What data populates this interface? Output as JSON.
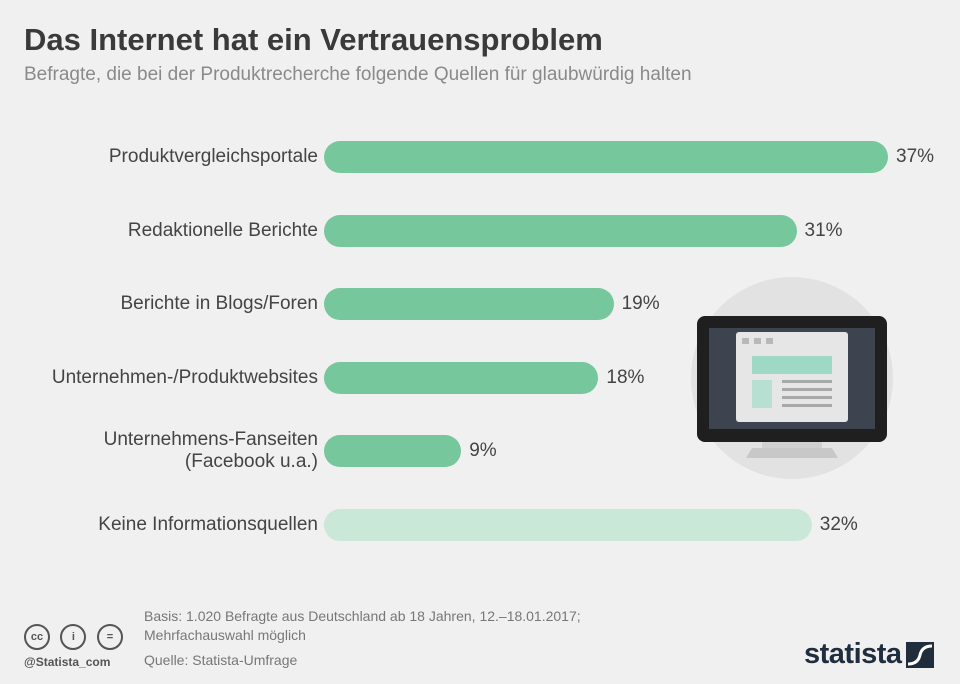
{
  "header": {
    "title": "Das Internet hat ein Vertrauensproblem",
    "subtitle": "Befragte, die bei der Produktrecherche folgende Quellen für glaubwürdig halten"
  },
  "chart_data": {
    "type": "bar",
    "orientation": "horizontal",
    "categories": [
      [
        "Produktvergleichsportale"
      ],
      [
        "Redaktionelle Berichte"
      ],
      [
        "Berichte in Blogs/Foren"
      ],
      [
        "Unternehmen-/Produktwebsites"
      ],
      [
        "Unternehmens-Fanseiten",
        "(Facebook u.a.)"
      ],
      [
        "Keine Informationsquellen"
      ]
    ],
    "values": [
      37,
      31,
      19,
      18,
      9,
      32
    ],
    "value_labels": [
      "37%",
      "31%",
      "19%",
      "18%",
      "9%",
      "32%"
    ],
    "unit": "%",
    "colors": [
      "#76c79b",
      "#76c79b",
      "#76c79b",
      "#76c79b",
      "#76c79b",
      "#c9e8d7"
    ],
    "xlim": [
      0,
      37
    ],
    "grid": false,
    "legend": "none"
  },
  "colors": {
    "bar_primary": "#76c79b",
    "bar_light": "#c9e8d7",
    "background": "#f0f0f0"
  },
  "illustration": {
    "icon": "monitor-webpage-icon"
  },
  "footer": {
    "basis_line1": "Basis: 1.020 Befragte aus Deutschland ab 18 Jahren, 12.–18.01.2017;",
    "basis_line2": "Mehrfachauswahl möglich",
    "source": "Quelle: Statista-Umfrage",
    "handle": "@Statista_com",
    "license_icons": [
      "cc-icon",
      "by-icon",
      "nd-icon"
    ],
    "license_symbols": [
      "cc",
      "i",
      "="
    ],
    "logo": "statista"
  }
}
